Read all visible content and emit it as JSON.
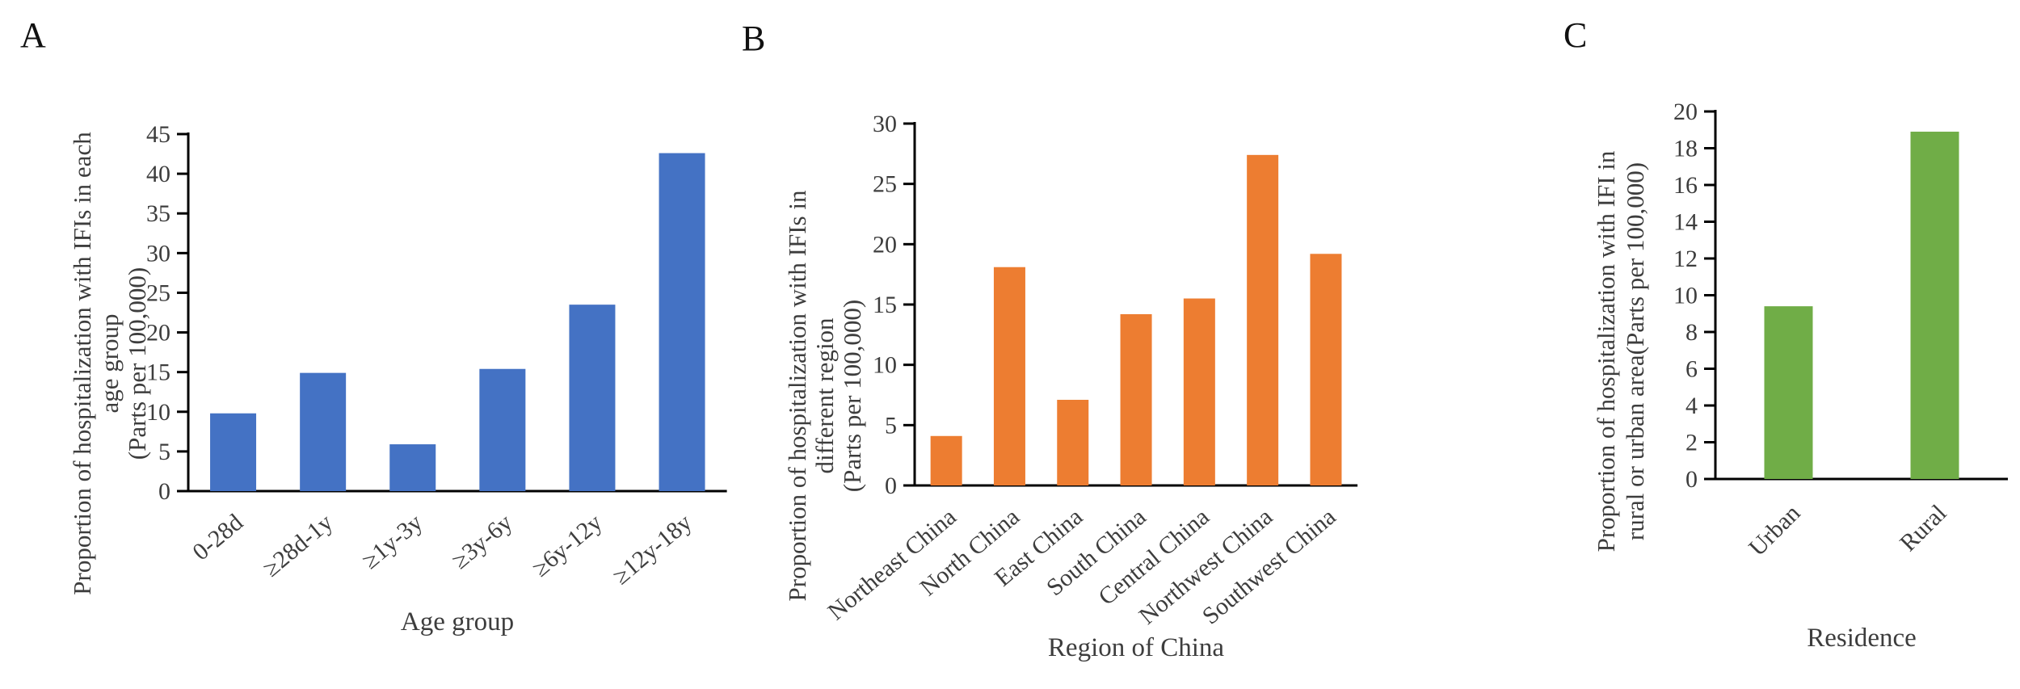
{
  "figure": {
    "background": "#ffffff",
    "panels": [
      {
        "letter": "A"
      },
      {
        "letter": "B"
      },
      {
        "letter": "C"
      }
    ]
  },
  "chart_data": [
    {
      "type": "bar",
      "panel": "A",
      "title": "",
      "categories": [
        "0-28d",
        "≥28d-1y",
        "≥1y-3y",
        "≥3y-6y",
        "≥6y-12y",
        "≥12y-18y"
      ],
      "values": [
        9.8,
        14.9,
        5.9,
        15.4,
        23.5,
        42.6
      ],
      "xlabel": "Age group",
      "ylabel_lines": [
        "Proportion of hospitalization with IFIs in each",
        "age group",
        "(Parts per 100,000)"
      ],
      "ylim": [
        0,
        45
      ],
      "ytick_step": 5,
      "yticks": [
        0,
        5,
        10,
        15,
        20,
        25,
        30,
        35,
        40,
        45
      ],
      "bar_color": "#4472C4",
      "grid": false,
      "legend": "none",
      "x_tick_rotation": -40
    },
    {
      "type": "bar",
      "panel": "B",
      "title": "",
      "categories": [
        "Northeast China",
        "North China",
        "East China",
        "South China",
        "Central China",
        "Northwest China",
        "Southwest China"
      ],
      "values": [
        4.1,
        18.1,
        7.1,
        14.2,
        15.5,
        27.4,
        19.2
      ],
      "xlabel": "Region of China",
      "ylabel_lines": [
        "Proportion of hospitalization with IFIs in",
        "different region",
        "(Parts per 100,000)"
      ],
      "ylim": [
        0,
        30
      ],
      "ytick_step": 5,
      "yticks": [
        0,
        5,
        10,
        15,
        20,
        25,
        30
      ],
      "bar_color": "#ED7D31",
      "grid": false,
      "legend": "none",
      "x_tick_rotation": -40
    },
    {
      "type": "bar",
      "panel": "C",
      "title": "",
      "categories": [
        "Urban",
        "Rural"
      ],
      "values": [
        9.4,
        18.9
      ],
      "xlabel": "Residence",
      "ylabel_lines": [
        "Proportion of hospitalization with IFI in",
        "rural or urban area(Parts per 100,000)"
      ],
      "ylim": [
        0,
        20
      ],
      "ytick_step": 2,
      "yticks": [
        0,
        2,
        4,
        6,
        8,
        10,
        12,
        14,
        16,
        18,
        20
      ],
      "bar_color": "#70AD47",
      "grid": false,
      "legend": "none",
      "x_tick_rotation": -45
    }
  ]
}
